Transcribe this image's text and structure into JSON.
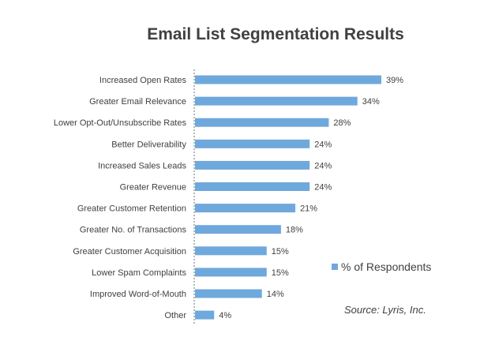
{
  "chart_data": {
    "type": "bar",
    "orientation": "horizontal",
    "title": "Email List Segmentation Results",
    "categories": [
      "Increased Open Rates",
      "Greater Email Relevance",
      "Lower Opt-Out/Unsubscribe Rates",
      "Better Deliverability",
      "Increased Sales Leads",
      "Greater Revenue",
      "Greater Customer Retention",
      "Greater No. of Transactions",
      "Greater Customer Acquisition",
      "Lower Spam Complaints",
      "Improved Word-of-Mouth",
      "Other"
    ],
    "series": [
      {
        "name": "% of Respondents",
        "values": [
          39,
          34,
          28,
          24,
          24,
          24,
          21,
          18,
          15,
          15,
          14,
          4
        ]
      }
    ],
    "data_labels": [
      "39%",
      "34%",
      "28%",
      "24%",
      "24%",
      "24%",
      "21%",
      "18%",
      "15%",
      "15%",
      "14%",
      "4%"
    ],
    "xlim": [
      0,
      40
    ],
    "grid": false,
    "legend_position": "right",
    "color": "#6fa8dc",
    "source": "Source: Lyris, Inc."
  }
}
